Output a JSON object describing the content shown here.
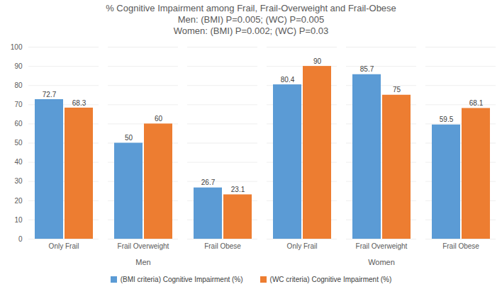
{
  "chart_data": {
    "type": "bar",
    "title": "% Cognitive Impairment among Frail, Frail-Overweight and Frail-Obese",
    "subtitle": [
      "Men: (BMI) P=0.005; (WC) P=0.005",
      "Women: (BMI) P=0.002; (WC) P=0.03"
    ],
    "categories": [
      "Only Frail",
      "Frail Overweight",
      "Frail Obese",
      "Only Frail",
      "Frail Overweight",
      "Frail Obese"
    ],
    "category_groups": [
      "Men",
      "Men",
      "Men",
      "Women",
      "Women",
      "Women"
    ],
    "series": [
      {
        "name": "(BMI criteria) Cognitive Impairment (%)",
        "color": "#5b9bd5",
        "values": [
          72.7,
          50,
          26.7,
          80.4,
          85.7,
          59.5
        ]
      },
      {
        "name": "(WC criteria) Cognitive Impairment (%)",
        "color": "#ed7d31",
        "values": [
          68.3,
          60,
          23.1,
          90,
          75,
          68.1
        ]
      }
    ],
    "ylim": [
      0,
      100
    ],
    "yticks": [
      0,
      10,
      20,
      30,
      40,
      50,
      60,
      70,
      80,
      90,
      100
    ],
    "grid": true,
    "data_labels": true,
    "legend": "bottom"
  }
}
